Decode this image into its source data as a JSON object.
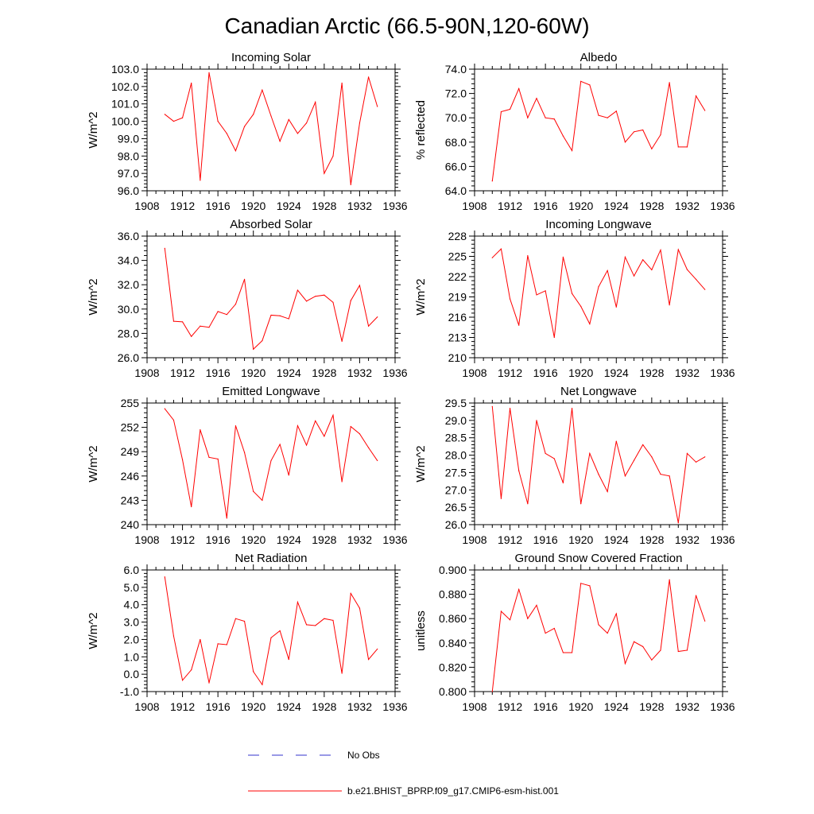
{
  "figure": {
    "title": "Canadian Arctic (66.5-90N,120-60W)",
    "legend": {
      "items": [
        {
          "label": "No Obs",
          "color": "#3333cc",
          "style": "dashed"
        },
        {
          "label": "b.e21.BHIST_BPRP.f09_g17.CMIP6-esm-hist.001",
          "color": "#ff0000",
          "style": "solid"
        }
      ]
    }
  },
  "chart_data": [
    {
      "type": "line",
      "title": "Incoming Solar",
      "ylabel": "W/m^2",
      "xlim": [
        1908,
        1936
      ],
      "xticks": [
        1908,
        1912,
        1916,
        1920,
        1924,
        1928,
        1932,
        1936
      ],
      "ylim": [
        96.0,
        103.0
      ],
      "yticks": [
        96.0,
        97.0,
        98.0,
        99.0,
        100.0,
        101.0,
        102.0,
        103.0
      ],
      "ydec": 1,
      "x": [
        1910,
        1911,
        1912,
        1913,
        1914,
        1915,
        1916,
        1917,
        1918,
        1919,
        1920,
        1921,
        1922,
        1923,
        1924,
        1925,
        1926,
        1927,
        1928,
        1929,
        1930,
        1931,
        1932,
        1933,
        1934
      ],
      "series": [
        {
          "color": "#ff0000",
          "values": [
            100.4,
            100.0,
            100.2,
            102.2,
            96.6,
            102.8,
            100.0,
            99.3,
            98.3,
            99.7,
            100.4,
            101.8,
            100.3,
            98.85,
            100.1,
            99.3,
            99.9,
            101.1,
            97.0,
            98.0,
            102.2,
            96.35,
            99.9,
            102.55,
            100.85
          ]
        }
      ]
    },
    {
      "type": "line",
      "title": "Albedo",
      "ylabel": "% reflected",
      "xlim": [
        1908,
        1936
      ],
      "xticks": [
        1908,
        1912,
        1916,
        1920,
        1924,
        1928,
        1932,
        1936
      ],
      "ylim": [
        64.0,
        74.0
      ],
      "yticks": [
        64.0,
        66.0,
        68.0,
        70.0,
        72.0,
        74.0
      ],
      "ydec": 1,
      "x": [
        1910,
        1911,
        1912,
        1913,
        1914,
        1915,
        1916,
        1917,
        1918,
        1919,
        1920,
        1921,
        1922,
        1923,
        1924,
        1925,
        1926,
        1927,
        1928,
        1929,
        1930,
        1931,
        1932,
        1933,
        1934
      ],
      "series": [
        {
          "color": "#ff0000",
          "values": [
            64.8,
            70.5,
            70.7,
            72.4,
            70.0,
            71.6,
            70.0,
            69.9,
            68.5,
            67.3,
            73.0,
            72.7,
            70.2,
            70.0,
            70.55,
            68.0,
            68.85,
            69.0,
            67.45,
            68.6,
            72.9,
            67.6,
            67.6,
            71.8,
            70.6
          ]
        }
      ]
    },
    {
      "type": "line",
      "title": "Absorbed Solar",
      "ylabel": "W/m^2",
      "xlim": [
        1908,
        1936
      ],
      "xticks": [
        1908,
        1912,
        1916,
        1920,
        1924,
        1928,
        1932,
        1936
      ],
      "ylim": [
        26.0,
        36.0
      ],
      "yticks": [
        26.0,
        28.0,
        30.0,
        32.0,
        34.0,
        36.0
      ],
      "ydec": 1,
      "x": [
        1910,
        1911,
        1912,
        1913,
        1914,
        1915,
        1916,
        1917,
        1918,
        1919,
        1920,
        1921,
        1922,
        1923,
        1924,
        1925,
        1926,
        1927,
        1928,
        1929,
        1930,
        1931,
        1932,
        1933,
        1934
      ],
      "series": [
        {
          "color": "#ff0000",
          "values": [
            35.0,
            29.0,
            28.95,
            27.75,
            28.6,
            28.5,
            29.8,
            29.55,
            30.4,
            32.45,
            26.7,
            27.4,
            29.5,
            29.45,
            29.2,
            31.55,
            30.65,
            31.05,
            31.15,
            30.55,
            27.35,
            30.7,
            31.95,
            28.6,
            29.35
          ]
        }
      ]
    },
    {
      "type": "line",
      "title": "Incoming Longwave",
      "ylabel": "W/m^2",
      "xlim": [
        1908,
        1936
      ],
      "xticks": [
        1908,
        1912,
        1916,
        1920,
        1924,
        1928,
        1932,
        1936
      ],
      "ylim": [
        210,
        228
      ],
      "yticks": [
        210,
        213,
        216,
        219,
        222,
        225,
        228
      ],
      "ydec": 0,
      "x": [
        1910,
        1911,
        1912,
        1913,
        1914,
        1915,
        1916,
        1917,
        1918,
        1919,
        1920,
        1921,
        1922,
        1923,
        1924,
        1925,
        1926,
        1927,
        1928,
        1929,
        1930,
        1931,
        1932,
        1933,
        1934
      ],
      "series": [
        {
          "color": "#ff0000",
          "values": [
            224.8,
            226.1,
            218.7,
            214.8,
            225.1,
            219.3,
            219.9,
            213.0,
            224.9,
            219.5,
            217.6,
            215.0,
            220.5,
            222.9,
            217.5,
            224.9,
            222.1,
            224.5,
            223.0,
            225.95,
            217.8,
            226.0,
            223.05,
            221.6,
            220.1
          ]
        }
      ]
    },
    {
      "type": "line",
      "title": "Emitted Longwave",
      "ylabel": "W/m^2",
      "xlim": [
        1908,
        1936
      ],
      "xticks": [
        1908,
        1912,
        1916,
        1920,
        1924,
        1928,
        1932,
        1936
      ],
      "ylim": [
        240,
        255
      ],
      "yticks": [
        240,
        243,
        246,
        249,
        252,
        255
      ],
      "ydec": 0,
      "x": [
        1910,
        1911,
        1912,
        1913,
        1914,
        1915,
        1916,
        1917,
        1918,
        1919,
        1920,
        1921,
        1922,
        1923,
        1924,
        1925,
        1926,
        1927,
        1928,
        1929,
        1930,
        1931,
        1932,
        1933,
        1934
      ],
      "series": [
        {
          "color": "#ff0000",
          "values": [
            254.3,
            252.9,
            248.0,
            242.2,
            251.7,
            248.3,
            248.1,
            240.8,
            252.2,
            248.9,
            244.1,
            243.0,
            247.9,
            249.9,
            246.1,
            252.2,
            249.8,
            252.8,
            250.9,
            253.5,
            245.3,
            252.1,
            251.2,
            249.5,
            247.9
          ]
        }
      ]
    },
    {
      "type": "line",
      "title": "Net Longwave",
      "ylabel": "W/m^2",
      "xlim": [
        1908,
        1936
      ],
      "xticks": [
        1908,
        1912,
        1916,
        1920,
        1924,
        1928,
        1932,
        1936
      ],
      "ylim": [
        26.0,
        29.5
      ],
      "yticks": [
        26.0,
        26.5,
        27.0,
        27.5,
        28.0,
        28.5,
        29.0,
        29.5
      ],
      "ydec": 1,
      "x": [
        1910,
        1911,
        1912,
        1913,
        1914,
        1915,
        1916,
        1917,
        1918,
        1919,
        1920,
        1921,
        1922,
        1923,
        1924,
        1925,
        1926,
        1927,
        1928,
        1929,
        1930,
        1931,
        1932,
        1933,
        1934
      ],
      "series": [
        {
          "color": "#ff0000",
          "values": [
            29.4,
            26.75,
            29.35,
            27.55,
            26.6,
            29.0,
            28.05,
            27.9,
            27.2,
            29.35,
            26.6,
            28.05,
            27.45,
            26.95,
            28.4,
            27.4,
            27.85,
            28.3,
            27.95,
            27.45,
            27.4,
            26.05,
            28.05,
            27.8,
            27.95
          ]
        }
      ]
    },
    {
      "type": "line",
      "title": "Net Radiation",
      "ylabel": "W/m^2",
      "xlim": [
        1908,
        1936
      ],
      "xticks": [
        1908,
        1912,
        1916,
        1920,
        1924,
        1928,
        1932,
        1936
      ],
      "ylim": [
        -1.0,
        6.0
      ],
      "yticks": [
        -1.0,
        0.0,
        1.0,
        2.0,
        3.0,
        4.0,
        5.0,
        6.0
      ],
      "ydec": 1,
      "x": [
        1910,
        1911,
        1912,
        1913,
        1914,
        1915,
        1916,
        1917,
        1918,
        1919,
        1920,
        1921,
        1922,
        1923,
        1924,
        1925,
        1926,
        1927,
        1928,
        1929,
        1930,
        1931,
        1932,
        1933,
        1934
      ],
      "series": [
        {
          "color": "#ff0000",
          "values": [
            5.6,
            2.2,
            -0.35,
            0.25,
            2.0,
            -0.5,
            1.75,
            1.7,
            3.2,
            3.05,
            0.15,
            -0.6,
            2.1,
            2.5,
            0.85,
            4.15,
            2.85,
            2.8,
            3.2,
            3.1,
            0.05,
            4.65,
            3.8,
            0.85,
            1.45
          ]
        }
      ]
    },
    {
      "type": "line",
      "title": "Ground Snow Covered Fraction",
      "ylabel": "unitless",
      "xlim": [
        1908,
        1936
      ],
      "xticks": [
        1908,
        1912,
        1916,
        1920,
        1924,
        1928,
        1932,
        1936
      ],
      "ylim": [
        0.8,
        0.9
      ],
      "yticks": [
        0.8,
        0.82,
        0.84,
        0.86,
        0.88,
        0.9
      ],
      "ydec": 3,
      "x": [
        1910,
        1911,
        1912,
        1913,
        1914,
        1915,
        1916,
        1917,
        1918,
        1919,
        1920,
        1921,
        1922,
        1923,
        1924,
        1925,
        1926,
        1927,
        1928,
        1929,
        1930,
        1931,
        1932,
        1933,
        1934
      ],
      "series": [
        {
          "color": "#ff0000",
          "values": [
            0.8,
            0.866,
            0.859,
            0.884,
            0.86,
            0.871,
            0.848,
            0.852,
            0.832,
            0.832,
            0.889,
            0.887,
            0.855,
            0.848,
            0.864,
            0.823,
            0.841,
            0.837,
            0.826,
            0.834,
            0.892,
            0.833,
            0.834,
            0.879,
            0.858
          ]
        }
      ]
    }
  ]
}
